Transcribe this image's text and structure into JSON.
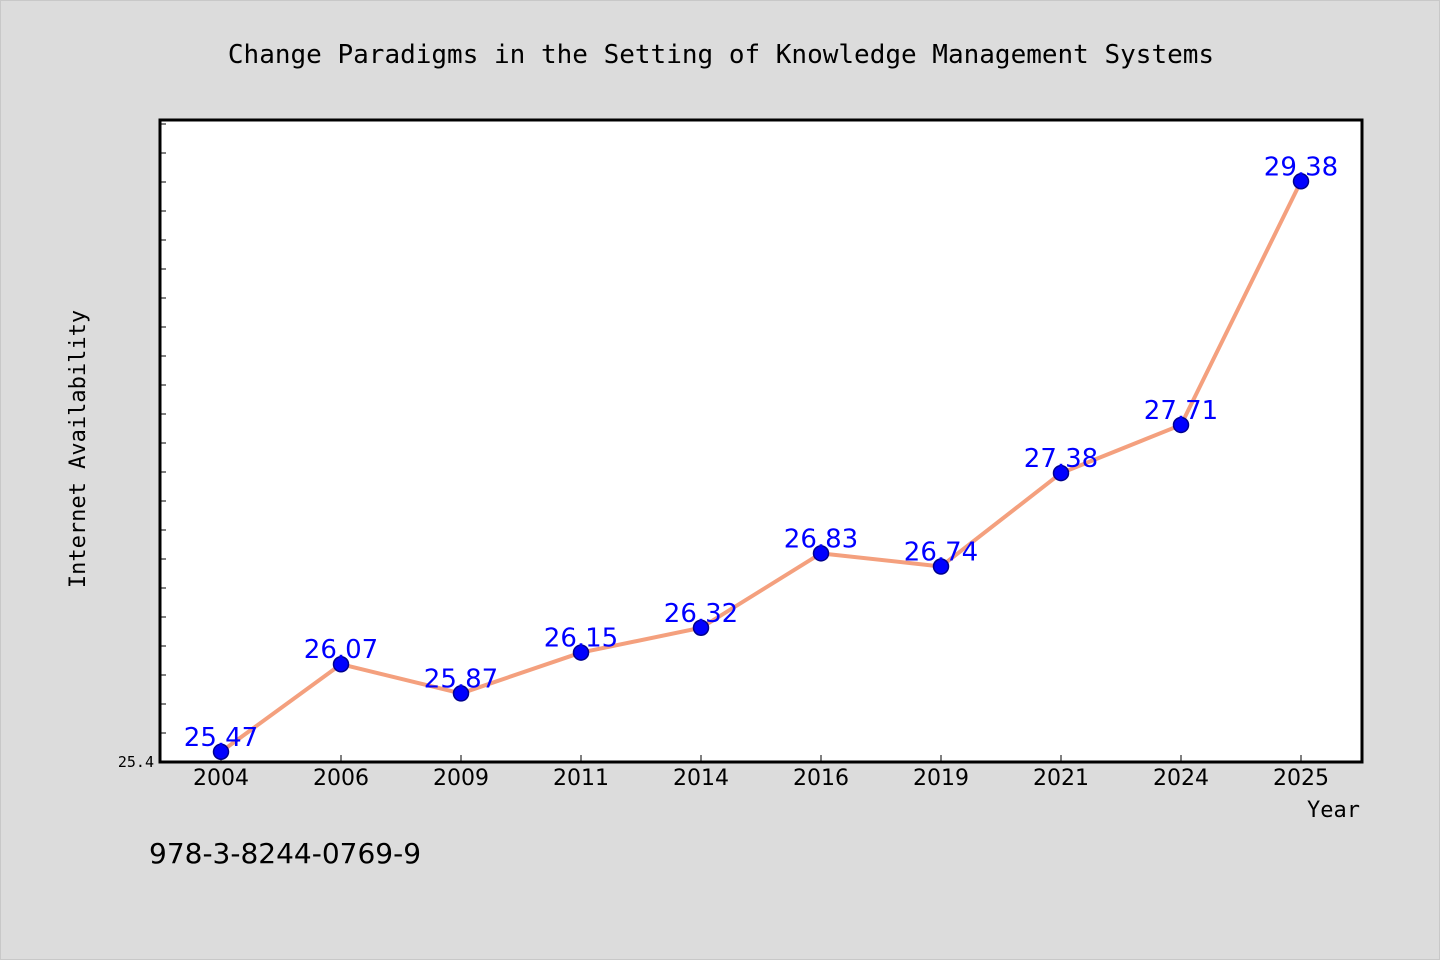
{
  "chart_data": {
    "type": "line",
    "title": "Change Paradigms in the Setting of Knowledge Management Systems",
    "xlabel": "Year",
    "ylabel": "Internet Availability",
    "categories": [
      "2004",
      "2006",
      "2009",
      "2011",
      "2014",
      "2016",
      "2019",
      "2021",
      "2024",
      "2025"
    ],
    "series": [
      {
        "values": [
          25.47,
          26.07,
          25.87,
          26.15,
          26.32,
          26.83,
          26.74,
          27.38,
          27.71,
          29.38
        ]
      }
    ],
    "value_labels": [
      "25.47",
      "26.07",
      "25.87",
      "26.15",
      "26.32",
      "26.83",
      "26.74",
      "27.38",
      "27.71",
      "29.38"
    ],
    "ylim": [
      25.4,
      29.8
    ],
    "y_tick_labels": [
      "25.4"
    ],
    "grid": false,
    "legend": "none",
    "colors": {
      "line": "#f4a07e",
      "marker": "#0000ff",
      "marker_edge": "#00008b",
      "data_label": "#0000ff",
      "plot_bg": "#ffffff",
      "frame": "#000000",
      "page_bg": "#dcdcdc"
    }
  },
  "footer": {
    "isbn": "978-3-8244-0769-9"
  }
}
